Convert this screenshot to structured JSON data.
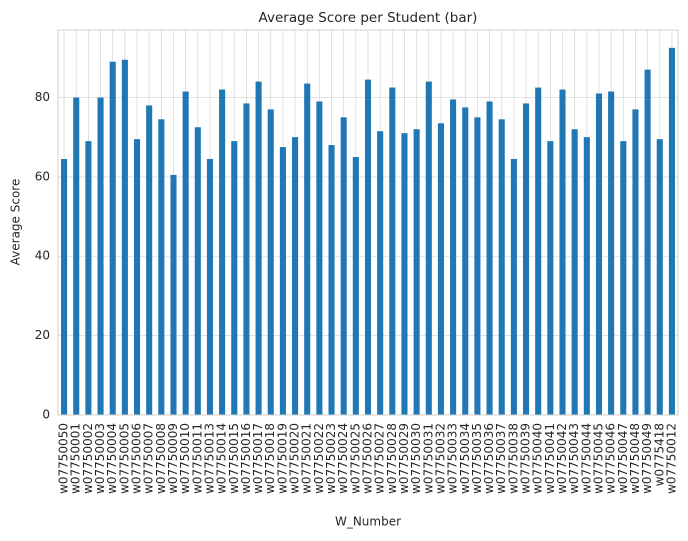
{
  "chart_data": {
    "type": "bar",
    "title": "Average Score per Student (bar)",
    "x_label": "W_Number",
    "y_label": "Average Score",
    "categories": [
      "w07750050",
      "w07750001",
      "w07750002",
      "w07750003",
      "w07750004",
      "w07750005",
      "w07750006",
      "w07750007",
      "w07750008",
      "w07750009",
      "w07750010",
      "w07750011",
      "w07750013",
      "w07750014",
      "w07750015",
      "w07750016",
      "w07750017",
      "w07750018",
      "w07750019",
      "w07750020",
      "w07750021",
      "w07750022",
      "w07750023",
      "w07750024",
      "w07750025",
      "w07750026",
      "w07750027",
      "w07750028",
      "w07750029",
      "w07750030",
      "w07750031",
      "w07750032",
      "w07750033",
      "w07750034",
      "w07750035",
      "w07750036",
      "w07750037",
      "w07750038",
      "w07750039",
      "w07750040",
      "w07750041",
      "w07750042",
      "w07750043",
      "w07750044",
      "w07750045",
      "w07750046",
      "w07750047",
      "w07750048",
      "w07750049",
      "w0775418",
      "w07750012"
    ],
    "values": [
      64.5,
      80,
      69,
      80,
      89,
      89.5,
      69.5,
      78,
      74.5,
      60.5,
      81.5,
      72.5,
      64.5,
      82,
      69,
      78.5,
      84,
      77,
      67.5,
      70,
      83.5,
      79,
      68,
      75,
      65,
      84.5,
      71.5,
      82.5,
      71,
      72,
      84,
      73.5,
      79.5,
      77.5,
      75,
      79,
      74.5,
      64.5,
      78.5,
      82.5,
      69,
      82,
      72,
      70,
      81,
      81.5,
      69,
      77,
      87,
      69.5,
      92.5
    ],
    "color": "#1f77b4",
    "ylim": [
      0,
      97
    ],
    "yticks": [
      0,
      20,
      40,
      60,
      80
    ],
    "grid": true
  }
}
